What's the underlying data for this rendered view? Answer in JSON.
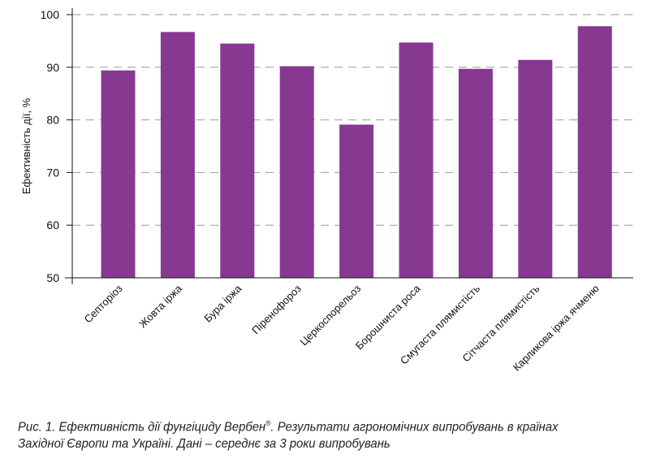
{
  "chart_data": {
    "type": "bar",
    "title": "",
    "xlabel": "",
    "ylabel": "Ефективність дії, %",
    "ylim": [
      50,
      100
    ],
    "yticks": [
      50,
      60,
      70,
      80,
      90,
      100
    ],
    "grid": "horizontal dashed",
    "bar_color": "#873891",
    "categories": [
      "Септоріоз",
      "Жовта іржа",
      "Бура іржа",
      "Піренофороз",
      "Церкоспорельоз",
      "Борошниста роса",
      "Смугаста плямистість",
      "Сітчаста плямистість",
      "Карликова іржа ячменю"
    ],
    "values": [
      89.4,
      96.7,
      94.5,
      90.2,
      79.1,
      94.7,
      89.7,
      91.4,
      97.8
    ]
  },
  "caption": {
    "part1": "Рис. 1. Ефективність дії фунгіциду Вербен",
    "reg": "®",
    "part2": ". Результати агрономічних випробувань в країнах Західної Європи та Україні. Дані – середнє за 3 роки випробувань"
  }
}
